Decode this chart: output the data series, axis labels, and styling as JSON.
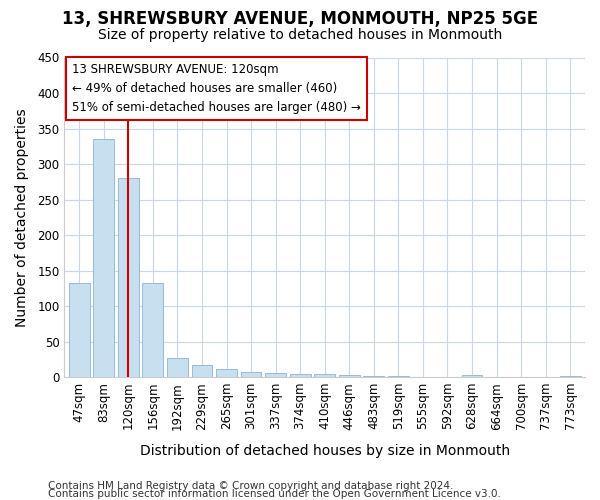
{
  "title": "13, SHREWSBURY AVENUE, MONMOUTH, NP25 5GE",
  "subtitle": "Size of property relative to detached houses in Monmouth",
  "xlabel": "Distribution of detached houses by size in Monmouth",
  "ylabel": "Number of detached properties",
  "categories": [
    "47sqm",
    "83sqm",
    "120sqm",
    "156sqm",
    "192sqm",
    "229sqm",
    "265sqm",
    "301sqm",
    "337sqm",
    "374sqm",
    "410sqm",
    "446sqm",
    "483sqm",
    "519sqm",
    "555sqm",
    "592sqm",
    "628sqm",
    "664sqm",
    "700sqm",
    "737sqm",
    "773sqm"
  ],
  "values": [
    133,
    335,
    280,
    132,
    27,
    17,
    12,
    7,
    6,
    5,
    4,
    3,
    2,
    1,
    0,
    0,
    3,
    0,
    0,
    0,
    2
  ],
  "bar_color": "#c8dff0",
  "bar_edge_color": "#9abbd4",
  "redline_index": 2,
  "annotation_line1": "13 SHREWSBURY AVENUE: 120sqm",
  "annotation_line2": "← 49% of detached houses are smaller (460)",
  "annotation_line3": "51% of semi-detached houses are larger (480) →",
  "annotation_box_color": "#ffffff",
  "annotation_box_edge_color": "#cc0000",
  "ylim": [
    0,
    450
  ],
  "yticks": [
    0,
    50,
    100,
    150,
    200,
    250,
    300,
    350,
    400,
    450
  ],
  "footer1": "Contains HM Land Registry data © Crown copyright and database right 2024.",
  "footer2": "Contains public sector information licensed under the Open Government Licence v3.0.",
  "bg_color": "#ffffff",
  "plot_bg_color": "#ffffff",
  "grid_color": "#c8d8e8",
  "title_fontsize": 12,
  "subtitle_fontsize": 10,
  "axis_label_fontsize": 10,
  "tick_fontsize": 8.5,
  "footer_fontsize": 7.5
}
